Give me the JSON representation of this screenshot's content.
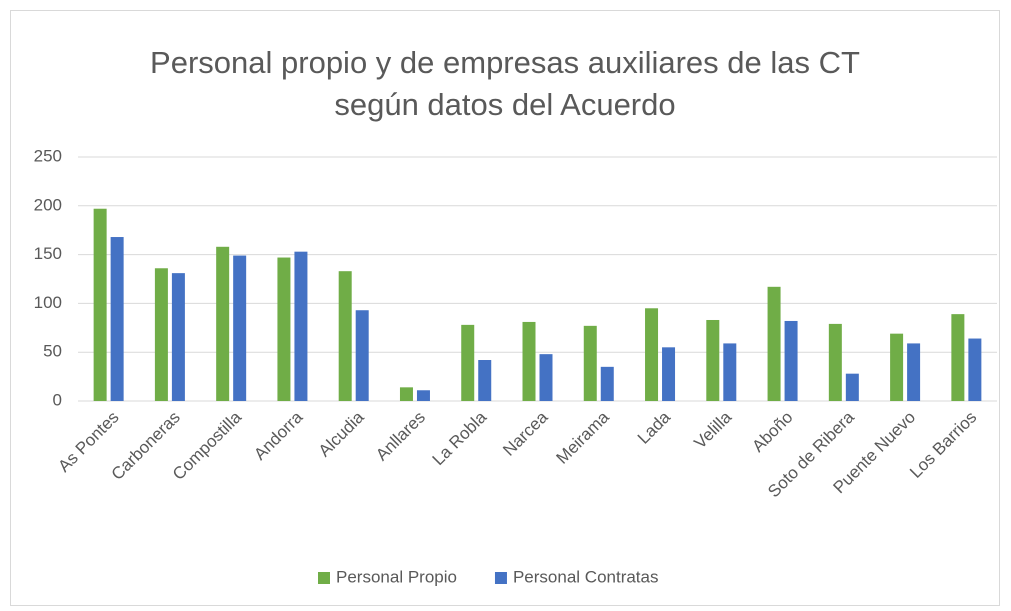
{
  "chart_data": {
    "type": "bar",
    "title": "Personal propio y de empresas auxiliares de las CT según datos del Acuerdo",
    "categories": [
      "As Pontes",
      "Carboneras",
      "Compostilla",
      "Andorra",
      "Alcudia",
      "Anllares",
      "La Robla",
      "Narcea",
      "Meirama",
      "Lada",
      "Velilla",
      "Aboño",
      "Soto de Ribera",
      "Puente Nuevo",
      "Los Barrios"
    ],
    "series": [
      {
        "name": "Personal Propio",
        "color": "#70ad47",
        "values": [
          197,
          136,
          158,
          147,
          133,
          14,
          78,
          81,
          77,
          95,
          83,
          117,
          79,
          69,
          89
        ]
      },
      {
        "name": "Personal Contratas",
        "color": "#4472c4",
        "values": [
          168,
          131,
          149,
          153,
          93,
          11,
          42,
          48,
          35,
          55,
          59,
          82,
          28,
          59,
          64
        ]
      }
    ],
    "ylim": [
      0,
      250
    ],
    "yticks": [
      0,
      50,
      100,
      150,
      200,
      250
    ],
    "grid": true,
    "legend": "bottom"
  }
}
